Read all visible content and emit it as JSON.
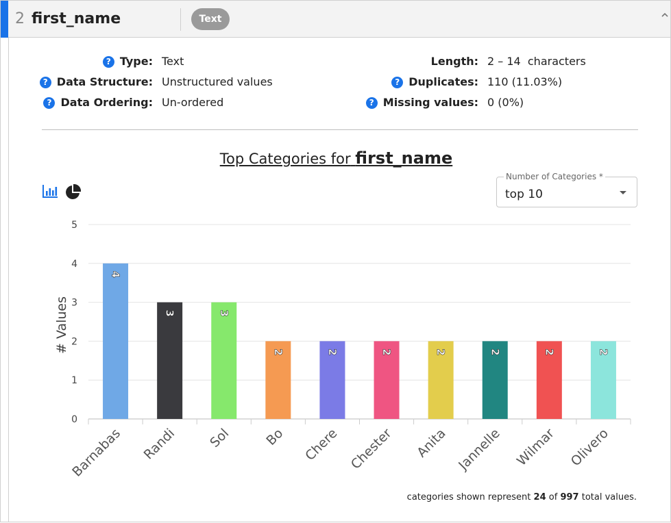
{
  "header": {
    "column_index": "2",
    "column_name": "first_name",
    "type_badge": "Text"
  },
  "stats_left": [
    {
      "label": "Type:",
      "value": "Text",
      "help": true
    },
    {
      "label": "Data Structure:",
      "value": "Unstructured values",
      "help": true
    },
    {
      "label": "Data Ordering:",
      "value": "Un-ordered",
      "help": true
    }
  ],
  "stats_right": [
    {
      "label": "Length:",
      "value": "2 – 14  characters",
      "help": false
    },
    {
      "label": "Duplicates:",
      "value": "110 (11.03%)",
      "help": true
    },
    {
      "label": "Missing values:",
      "value": "0 (0%)",
      "help": true
    }
  ],
  "help_glyph": "?",
  "chart_heading": {
    "prefix": "Top Categories for",
    "column": "first_name"
  },
  "category_select": {
    "label": "Number of Categories *",
    "value": "top 10"
  },
  "footnote": {
    "before": "categories shown represent",
    "shown": "24",
    "middle": "of",
    "total": "997",
    "after": "total values."
  },
  "colors": {
    "accent": "#1a73e8",
    "bar_icon": "#1a73e8",
    "pie_icon": "#222222"
  },
  "icons": {
    "bar_chart": "bar-chart-icon",
    "pie_chart": "pie-chart-icon",
    "collapse": "chevron-up-icon",
    "help": "help-circle-icon"
  },
  "chart_data": {
    "type": "bar",
    "title": "Top Categories for first_name",
    "xlabel": "",
    "ylabel": "# Values",
    "ylim": [
      0,
      5
    ],
    "yticks": [
      0,
      1,
      2,
      3,
      4,
      5
    ],
    "grid": true,
    "categories": [
      "Barnabas",
      "Randi",
      "Sol",
      "Bo",
      "Chere",
      "Chester",
      "Anita",
      "Jannelle",
      "Wilmar",
      "Olivero"
    ],
    "values": [
      4,
      3,
      3,
      2,
      2,
      2,
      2,
      2,
      2,
      2
    ],
    "bar_colors": [
      "#6fa8e6",
      "#3a3a3e",
      "#86e86c",
      "#f59a52",
      "#7b7be6",
      "#ef5582",
      "#e3cd4c",
      "#218681",
      "#f05252",
      "#8ce5dc"
    ],
    "data_labels": [
      "4",
      "3",
      "3",
      "2",
      "2",
      "2",
      "2",
      "2",
      "2",
      "2"
    ]
  }
}
